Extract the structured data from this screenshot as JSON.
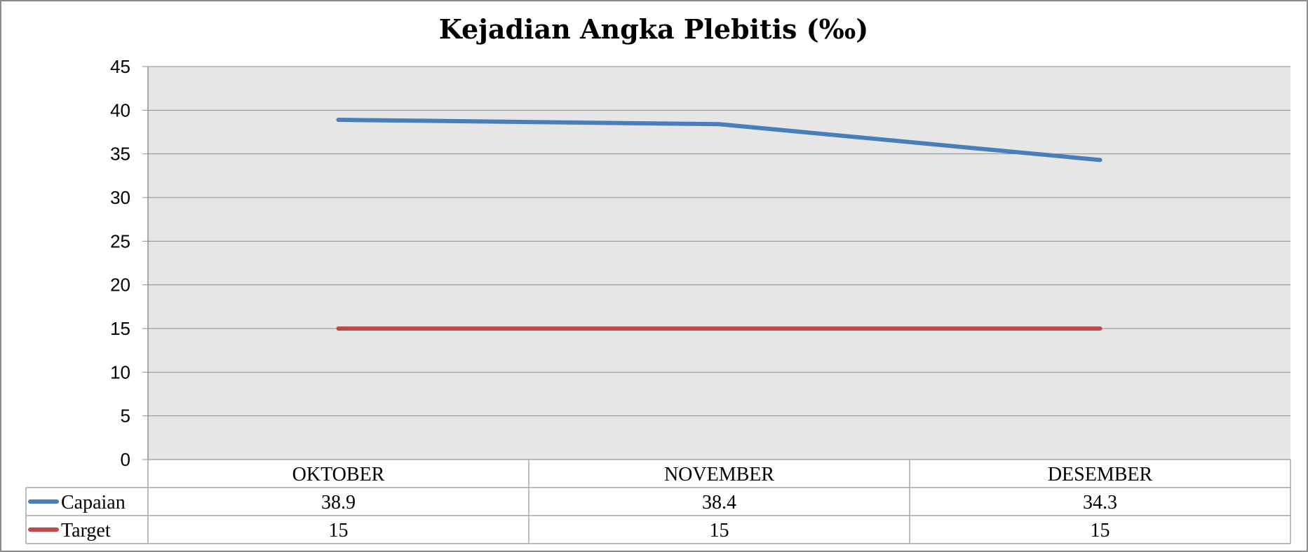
{
  "chart_data": {
    "type": "line",
    "title": "Kejadian Angka Plebitis (‰)",
    "categories": [
      "OKTOBER",
      "NOVEMBER",
      "DESEMBER"
    ],
    "series": [
      {
        "name": "Capaian",
        "values": [
          38.9,
          38.4,
          34.3
        ],
        "color": "#4a7ebb"
      },
      {
        "name": "Target",
        "values": [
          15,
          15,
          15
        ],
        "color": "#be4b48"
      }
    ],
    "ylim": [
      0,
      45
    ],
    "yticks": [
      0,
      5,
      10,
      15,
      20,
      25,
      30,
      35,
      40,
      45
    ],
    "grid": true,
    "legend": "data-table"
  }
}
